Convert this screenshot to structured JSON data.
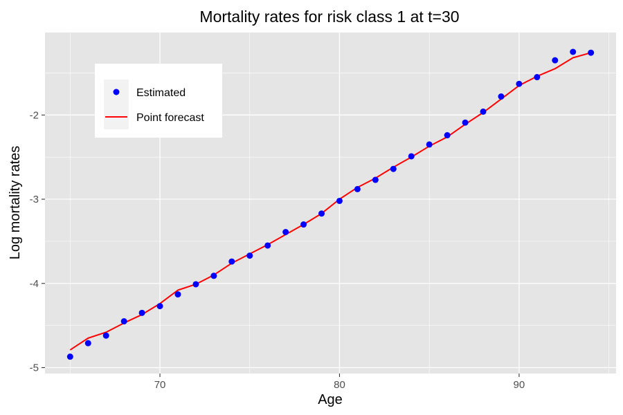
{
  "chart_data": {
    "type": "line",
    "title": "Mortality rates for risk class 1 at t=30",
    "xlabel": "Age",
    "ylabel": "Log mortality rates",
    "xlim": [
      63.6,
      95.4
    ],
    "ylim": [
      -5.07,
      -1.02
    ],
    "x_ticks": [
      70,
      80,
      90
    ],
    "x_tick_labels": [
      "70",
      "80",
      "90"
    ],
    "y_ticks": [
      -5,
      -4,
      -3,
      -2
    ],
    "y_tick_labels": [
      "-5",
      "-4",
      "-3",
      "-2"
    ],
    "grid": true,
    "legend_position": "top-left",
    "colors": {
      "estimated": "#0000ff",
      "forecast": "#ff0000",
      "panel": "#e5e5e5",
      "grid": "#ffffff"
    },
    "series": [
      {
        "name": "Estimated",
        "kind": "points",
        "x": [
          65,
          66,
          67,
          68,
          69,
          70,
          71,
          72,
          73,
          74,
          75,
          76,
          77,
          78,
          79,
          80,
          81,
          82,
          83,
          84,
          85,
          86,
          87,
          88,
          89,
          90,
          91,
          92,
          93,
          94
        ],
        "y": [
          -4.87,
          -4.71,
          -4.62,
          -4.45,
          -4.35,
          -4.27,
          -4.13,
          -4.01,
          -3.91,
          -3.74,
          -3.67,
          -3.55,
          -3.39,
          -3.3,
          -3.17,
          -3.02,
          -2.88,
          -2.77,
          -2.64,
          -2.49,
          -2.35,
          -2.24,
          -2.09,
          -1.96,
          -1.78,
          -1.63,
          -1.55,
          -1.35,
          -1.25,
          -1.26
        ]
      },
      {
        "name": "Point forecast",
        "kind": "line",
        "x": [
          65,
          66,
          67,
          68,
          69,
          70,
          71,
          72,
          73,
          74,
          75,
          76,
          77,
          78,
          79,
          80,
          81,
          82,
          83,
          84,
          85,
          86,
          87,
          88,
          89,
          90,
          91,
          92,
          93,
          94
        ],
        "y": [
          -4.79,
          -4.65,
          -4.58,
          -4.47,
          -4.37,
          -4.24,
          -4.08,
          -4.01,
          -3.9,
          -3.76,
          -3.65,
          -3.54,
          -3.42,
          -3.3,
          -3.17,
          -3.0,
          -2.86,
          -2.75,
          -2.62,
          -2.5,
          -2.37,
          -2.26,
          -2.11,
          -1.97,
          -1.81,
          -1.65,
          -1.54,
          -1.45,
          -1.32,
          -1.26
        ]
      }
    ]
  }
}
